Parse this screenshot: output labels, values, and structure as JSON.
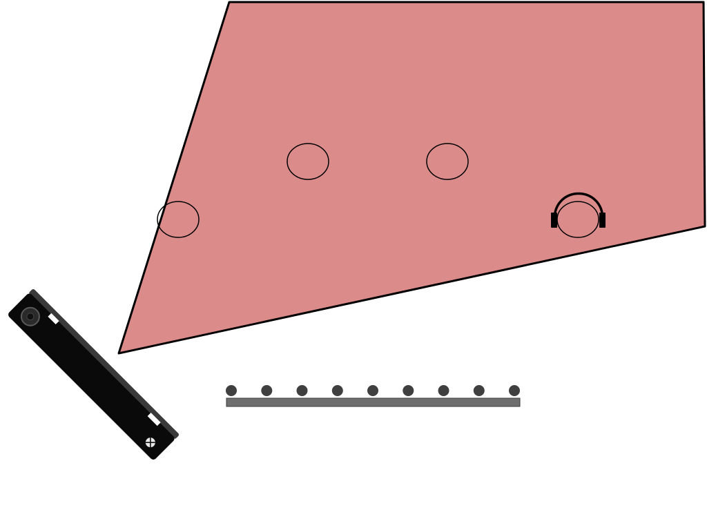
{
  "scene": {
    "field_of_view": {
      "fill_color": "#dc8b8b",
      "stroke_color": "#000000"
    },
    "persons": {
      "count": 4,
      "stroke_color": "#000000"
    },
    "headphones": {
      "icon": "headphones-icon",
      "color": "#000000"
    },
    "sensor": {
      "icon": "kinect-sensor-icon",
      "body_color": "#0a0a0a",
      "accent_color": "#3a3a3a"
    },
    "microphone_array": {
      "icon": "microphone-array-icon",
      "microphone_count": 9,
      "mic_color": "#3f3f3f",
      "bar_color": "#6e6e6e"
    }
  }
}
